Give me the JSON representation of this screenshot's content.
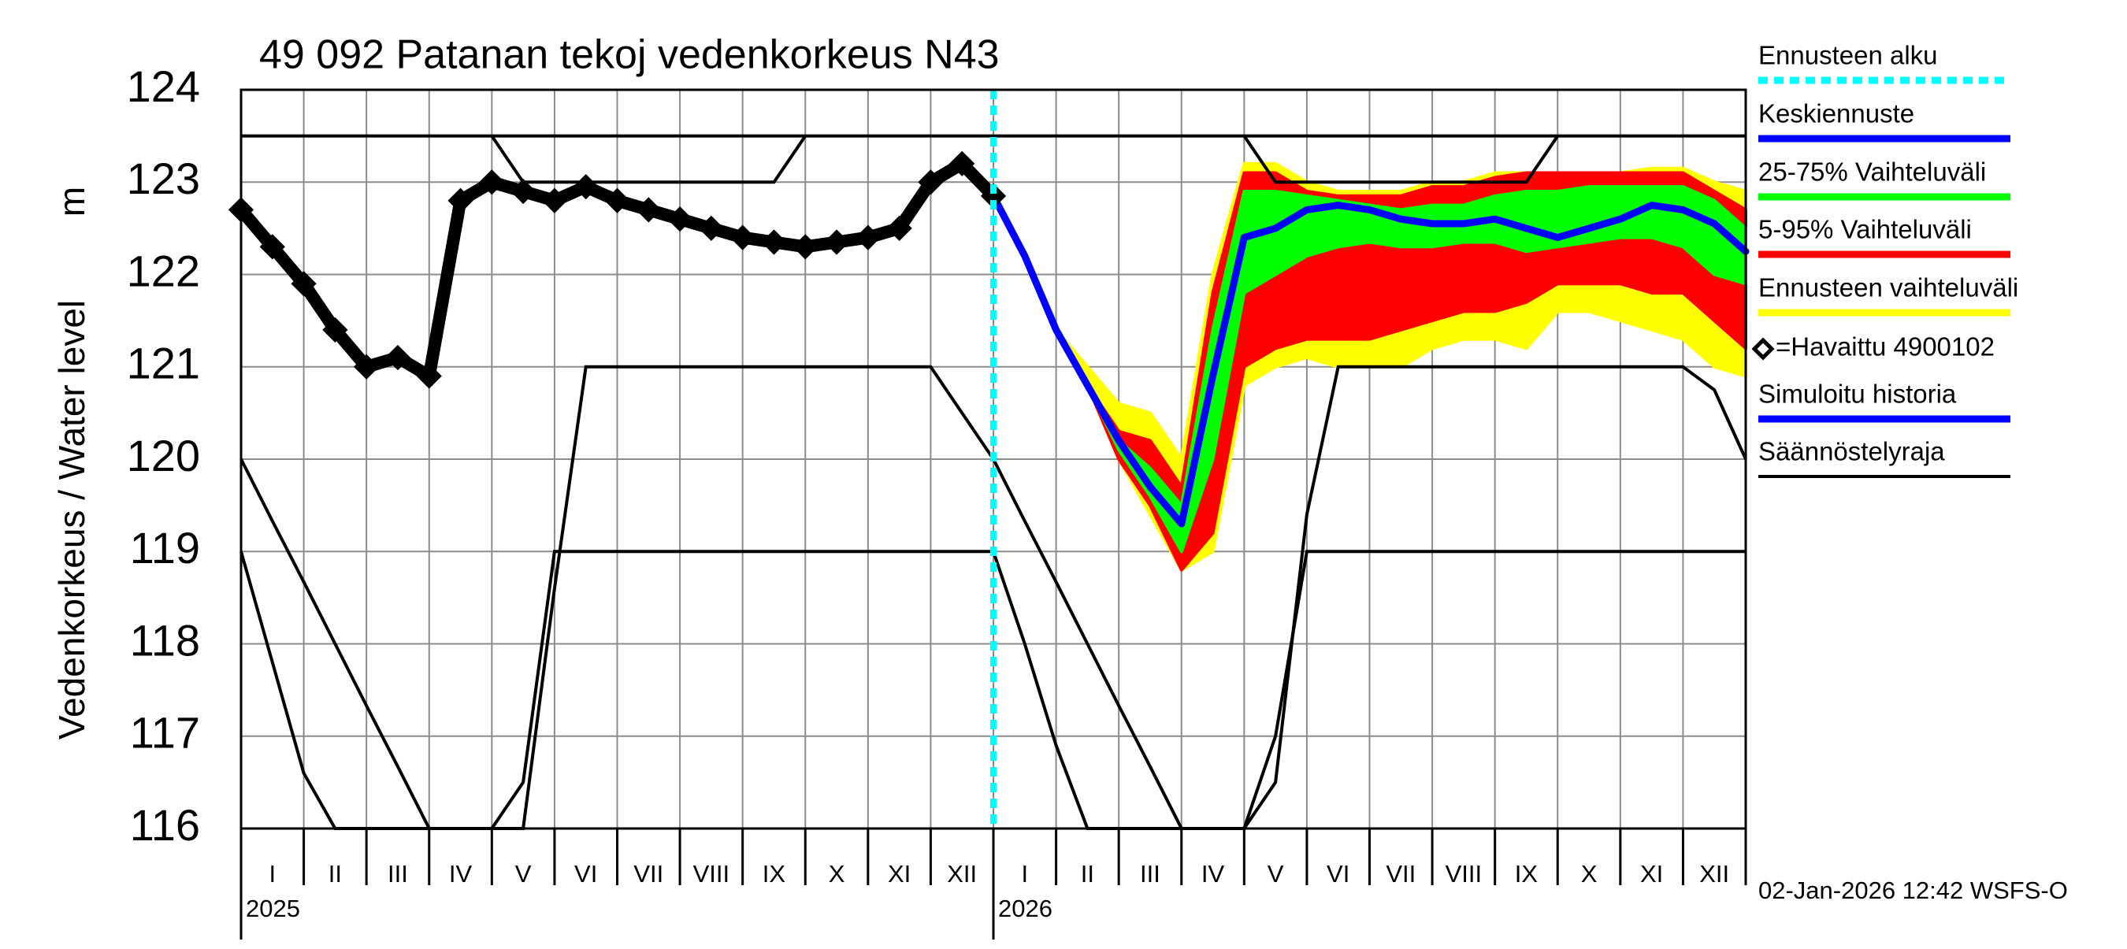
{
  "chart_data": {
    "type": "line",
    "title": "49 092 Patanan tekoj vedenkorkeus N43",
    "ylabel": "Vedenkorkeus / Water level",
    "ylabel_unit": "m",
    "footer": "02-Jan-2026 12:42 WSFS-O",
    "years": [
      "2025",
      "2026"
    ],
    "categories": [
      null,
      "I",
      null,
      "II",
      null,
      "III",
      null,
      "IV",
      null,
      "V",
      null,
      "VI",
      null,
      "VII",
      null,
      "VIII",
      null,
      "IX",
      null,
      "X",
      null,
      "XI",
      null,
      "XII",
      null,
      "I",
      null,
      "II",
      null,
      "III",
      null,
      "IV",
      null,
      "V",
      null,
      "VI",
      null,
      "VII",
      null,
      "VIII",
      null,
      "IX",
      null,
      "X",
      null,
      "XI",
      null,
      "XII",
      null
    ],
    "ylim": [
      116,
      124
    ],
    "yticks": [
      116,
      117,
      118,
      119,
      120,
      121,
      122,
      123,
      124
    ],
    "grid": true,
    "legend": "right",
    "series": [
      {
        "name": "Ennusteen alku",
        "color": "#00ffff",
        "kind": "vline"
      },
      {
        "name": "Keskiennuste",
        "color": "#0000ff",
        "kind": "line",
        "values": [
          null,
          null,
          null,
          null,
          null,
          null,
          null,
          null,
          null,
          null,
          null,
          null,
          null,
          null,
          null,
          null,
          null,
          null,
          null,
          null,
          null,
          null,
          null,
          null,
          122.85,
          122.2,
          121.4,
          120.8,
          120.2,
          119.7,
          119.3,
          120.9,
          122.4,
          122.5,
          122.7,
          122.75,
          122.7,
          122.6,
          122.55,
          122.55,
          122.6,
          122.5,
          122.4,
          122.5,
          122.6,
          122.75,
          122.7,
          122.55,
          122.25
        ]
      },
      {
        "name": "25-75% Vaihteluväli",
        "color": "#00ff00",
        "kind": "band",
        "upper": [
          null,
          null,
          null,
          null,
          null,
          null,
          null,
          null,
          null,
          null,
          null,
          null,
          null,
          null,
          null,
          null,
          null,
          null,
          null,
          null,
          null,
          null,
          null,
          null,
          122.85,
          122.2,
          121.4,
          120.8,
          120.2,
          119.9,
          119.5,
          121.4,
          122.9,
          122.9,
          122.85,
          122.8,
          122.75,
          122.7,
          122.75,
          122.75,
          122.85,
          122.9,
          122.9,
          122.95,
          122.95,
          122.95,
          122.95,
          122.8,
          122.5
        ],
        "lower": [
          null,
          null,
          null,
          null,
          null,
          null,
          null,
          null,
          null,
          null,
          null,
          null,
          null,
          null,
          null,
          null,
          null,
          null,
          null,
          null,
          null,
          null,
          null,
          null,
          122.85,
          122.2,
          121.4,
          120.8,
          120.1,
          119.6,
          119.0,
          120.0,
          121.8,
          122.0,
          122.2,
          122.3,
          122.35,
          122.3,
          122.3,
          122.35,
          122.35,
          122.25,
          122.3,
          122.35,
          122.4,
          122.4,
          122.3,
          122.0,
          121.9
        ]
      },
      {
        "name": "5-95% Vaihteluväli",
        "color": "#ff0000",
        "kind": "band",
        "upper": [
          null,
          null,
          null,
          null,
          null,
          null,
          null,
          null,
          null,
          null,
          null,
          null,
          null,
          null,
          null,
          null,
          null,
          null,
          null,
          null,
          null,
          null,
          null,
          null,
          122.85,
          122.2,
          121.4,
          120.8,
          120.3,
          120.2,
          119.7,
          121.8,
          123.1,
          123.1,
          122.9,
          122.85,
          122.85,
          122.85,
          122.95,
          122.95,
          123.05,
          123.1,
          123.1,
          123.1,
          123.1,
          123.1,
          123.1,
          122.9,
          122.7
        ],
        "lower": [
          null,
          null,
          null,
          null,
          null,
          null,
          null,
          null,
          null,
          null,
          null,
          null,
          null,
          null,
          null,
          null,
          null,
          null,
          null,
          null,
          null,
          null,
          null,
          null,
          122.85,
          122.2,
          121.4,
          120.8,
          120.0,
          119.5,
          118.8,
          119.2,
          121.0,
          121.2,
          121.3,
          121.3,
          121.3,
          121.4,
          121.5,
          121.6,
          121.6,
          121.7,
          121.9,
          121.9,
          121.9,
          121.8,
          121.8,
          121.5,
          121.2
        ]
      },
      {
        "name": "Ennusteen vaihteluväli",
        "color": "#ffff00",
        "kind": "band",
        "upper": [
          null,
          null,
          null,
          null,
          null,
          null,
          null,
          null,
          null,
          null,
          null,
          null,
          null,
          null,
          null,
          null,
          null,
          null,
          null,
          null,
          null,
          null,
          null,
          null,
          122.85,
          122.2,
          121.4,
          121.0,
          120.6,
          120.5,
          120.0,
          122.0,
          123.2,
          123.2,
          123.0,
          122.9,
          122.9,
          122.9,
          123.0,
          123.0,
          123.1,
          123.1,
          123.1,
          123.1,
          123.1,
          123.15,
          123.15,
          123.0,
          122.9
        ],
        "lower": [
          null,
          null,
          null,
          null,
          null,
          null,
          null,
          null,
          null,
          null,
          null,
          null,
          null,
          null,
          null,
          null,
          null,
          null,
          null,
          null,
          null,
          null,
          null,
          null,
          122.85,
          122.2,
          121.4,
          120.8,
          120.0,
          119.4,
          118.8,
          119.0,
          120.8,
          121.0,
          121.1,
          121.0,
          121.0,
          121.0,
          121.2,
          121.3,
          121.3,
          121.2,
          121.6,
          121.6,
          121.5,
          121.4,
          121.3,
          121.0,
          120.9
        ]
      },
      {
        "name": "=Havaittu 4900102",
        "color": "#000000",
        "kind": "markers",
        "values": [
          122.7,
          122.3,
          121.9,
          121.4,
          121.0,
          121.1,
          120.9,
          122.8,
          123.0,
          122.9,
          122.8,
          122.95,
          122.8,
          122.7,
          122.6,
          122.5,
          122.4,
          122.35,
          122.3,
          122.35,
          122.4,
          122.5,
          123.0,
          123.2,
          122.85,
          null,
          null,
          null,
          null,
          null,
          null,
          null,
          null,
          null,
          null,
          null,
          null,
          null,
          null,
          null,
          null,
          null,
          null,
          null,
          null,
          null,
          null,
          null,
          null
        ]
      },
      {
        "name": "Simuloitu historia",
        "color": "#0000ff",
        "kind": "line",
        "values": [
          122.7,
          122.3,
          121.9,
          121.4,
          121.0,
          121.1,
          120.9,
          122.8,
          123.0,
          122.9,
          122.8,
          122.95,
          122.8,
          122.7,
          122.6,
          122.5,
          122.4,
          122.35,
          122.3,
          122.35,
          122.4,
          122.5,
          123.0,
          123.2,
          122.85,
          null,
          null,
          null,
          null,
          null,
          null,
          null,
          null,
          null,
          null,
          null,
          null,
          null,
          null,
          null,
          null,
          null,
          null,
          null,
          null,
          null,
          null,
          null,
          null
        ]
      },
      {
        "name": "Säännöstelyraja",
        "color": "#000000",
        "kind": "lines",
        "lines": [
          [
            123.5,
            123.5,
            123.5,
            123.5,
            123.5,
            123.5,
            123.5,
            123.5,
            123.5,
            123.5,
            123.5,
            123.5,
            123.5,
            123.5,
            123.5,
            123.5,
            123.5,
            123.5,
            123.5,
            123.5,
            123.5,
            123.5,
            123.5,
            123.5,
            123.5,
            123.5,
            123.5,
            123.5,
            123.5,
            123.5,
            123.5,
            123.5,
            123.5,
            123.5,
            123.5,
            123.5,
            123.5,
            123.5,
            123.5,
            123.5,
            123.5,
            123.5,
            123.5,
            123.5,
            123.5,
            123.5,
            123.5,
            123.5,
            123.5
          ],
          [
            null,
            null,
            null,
            null,
            null,
            null,
            null,
            null,
            123.5,
            123.0,
            123.0,
            123.0,
            123.0,
            123.0,
            123.0,
            123.0,
            123.0,
            123.0,
            123.5,
            null,
            null,
            null,
            null,
            null,
            null,
            null,
            null,
            null,
            null,
            null,
            null,
            null,
            123.5,
            123.0,
            123.0,
            123.0,
            123.0,
            123.0,
            123.0,
            123.0,
            123.0,
            123.0,
            123.5,
            null,
            null,
            null,
            null,
            null,
            null
          ],
          [
            120,
            119.33,
            118.67,
            118,
            117.33,
            116.67,
            116,
            116,
            116,
            116,
            118.6,
            121,
            121,
            121,
            121,
            121,
            121,
            121,
            121,
            121,
            121,
            121,
            121,
            120.5,
            120,
            119.33,
            118.67,
            118,
            117.33,
            116.67,
            116,
            116,
            116,
            116.5,
            119.4,
            121,
            121,
            121,
            121,
            121,
            121,
            121,
            121,
            121,
            121,
            121,
            121,
            120.75,
            120
          ],
          [
            119,
            117.8,
            116.6,
            116,
            116,
            116,
            116,
            116,
            116,
            116.5,
            119,
            119,
            119,
            119,
            119,
            119,
            119,
            119,
            119,
            119,
            119,
            119,
            119,
            119,
            119,
            118,
            116.9,
            116,
            116,
            116,
            116,
            116,
            116,
            117,
            119,
            119,
            119,
            119,
            119,
            119,
            119,
            119,
            119,
            119,
            119,
            119,
            119,
            119,
            119
          ]
        ]
      }
    ]
  }
}
